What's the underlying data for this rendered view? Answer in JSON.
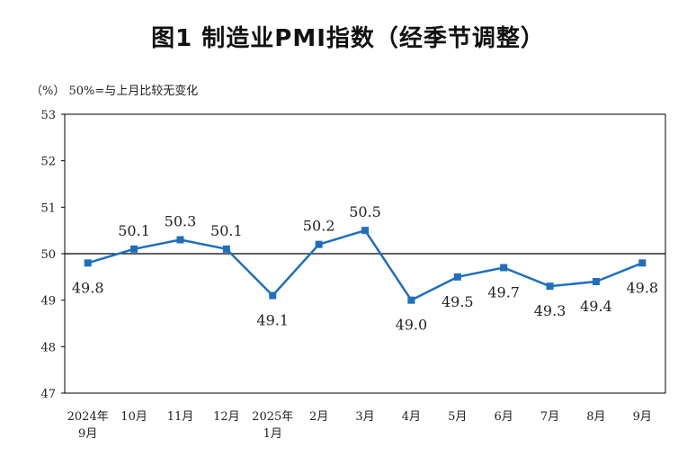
{
  "title": "图1  制造业PMI指数（经季节调整）",
  "unit_note": "（%）  50%=与上月比较无变化",
  "colors": {
    "series": "#1f6fbd",
    "axis": "#000000",
    "baseline": "#000000"
  },
  "chart_data": {
    "type": "line",
    "title": "图1  制造业PMI指数（经季节调整）",
    "ylabel": "%",
    "ylim": [
      47,
      53
    ],
    "yticks": [
      47,
      48,
      49,
      50,
      51,
      52,
      53
    ],
    "reference_line": 50,
    "categories": [
      [
        "2024年",
        "9月"
      ],
      [
        "10月"
      ],
      [
        "11月"
      ],
      [
        "12月"
      ],
      [
        "2025年",
        "1月"
      ],
      [
        "2月"
      ],
      [
        "3月"
      ],
      [
        "4月"
      ],
      [
        "5月"
      ],
      [
        "6月"
      ],
      [
        "7月"
      ],
      [
        "8月"
      ],
      [
        "9月"
      ]
    ],
    "series": [
      {
        "name": "制造业PMI",
        "values": [
          49.8,
          50.1,
          50.3,
          50.1,
          49.1,
          50.2,
          50.5,
          49.0,
          49.5,
          49.7,
          49.3,
          49.4,
          49.8
        ]
      }
    ],
    "data_labels": [
      "49.8",
      "50.1",
      "50.3",
      "50.1",
      "49.1",
      "50.2",
      "50.5",
      "49.0",
      "49.5",
      "49.7",
      "49.3",
      "49.4",
      "49.8"
    ]
  }
}
